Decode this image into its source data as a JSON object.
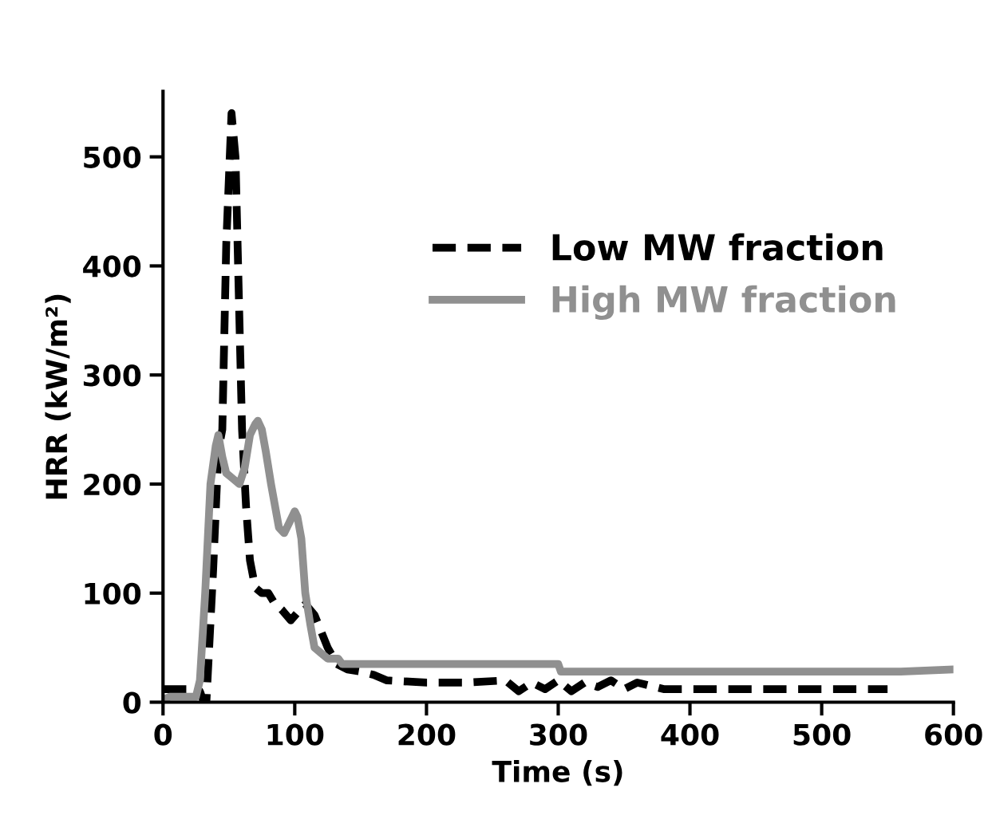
{
  "chart_data": {
    "type": "line",
    "xlabel": "Time (s)",
    "ylabel": "HRR (kW/m²)",
    "xlim": [
      0,
      600
    ],
    "ylim": [
      0,
      560
    ],
    "xticks": [
      0,
      100,
      200,
      300,
      400,
      500,
      600
    ],
    "yticks": [
      0,
      100,
      200,
      300,
      400,
      500
    ],
    "grid": false,
    "legend": "top right",
    "marker": "none",
    "series": [
      {
        "name": "Low MW fraction",
        "color": "#000000",
        "line_style": "dashed",
        "x": [
          0,
          5,
          20,
          28,
          31,
          33,
          38,
          42,
          45,
          48,
          52,
          55,
          58,
          60,
          63,
          66,
          70,
          75,
          80,
          85,
          90,
          97,
          102,
          108,
          115,
          120,
          125,
          132,
          140,
          150,
          160,
          170,
          200,
          230,
          260,
          270,
          280,
          290,
          300,
          310,
          320,
          330,
          340,
          350,
          360,
          370,
          380,
          450,
          550
        ],
        "values": [
          12,
          12,
          12,
          10,
          0,
          2,
          120,
          230,
          250,
          420,
          540,
          500,
          350,
          250,
          180,
          130,
          105,
          100,
          100,
          90,
          85,
          75,
          82,
          90,
          80,
          65,
          50,
          35,
          30,
          28,
          25,
          20,
          18,
          18,
          20,
          10,
          18,
          12,
          20,
          10,
          18,
          14,
          20,
          12,
          18,
          15,
          12,
          12,
          12
        ]
      },
      {
        "name": "High MW fraction",
        "color": "#909090",
        "line_style": "solid",
        "x": [
          0,
          5,
          25,
          28,
          32,
          36,
          40,
          42,
          45,
          48,
          53,
          58,
          62,
          66,
          70,
          72,
          75,
          78,
          82,
          88,
          92,
          96,
          100,
          102,
          105,
          108,
          112,
          115,
          120,
          125,
          133,
          136,
          140,
          200,
          300,
          302,
          400,
          500,
          560,
          598
        ],
        "values": [
          2,
          5,
          5,
          20,
          100,
          200,
          235,
          245,
          225,
          210,
          205,
          200,
          215,
          245,
          255,
          258,
          250,
          230,
          200,
          160,
          155,
          165,
          175,
          170,
          150,
          100,
          70,
          50,
          45,
          40,
          40,
          35,
          35,
          35,
          35,
          28,
          28,
          28,
          28,
          30
        ]
      }
    ]
  }
}
